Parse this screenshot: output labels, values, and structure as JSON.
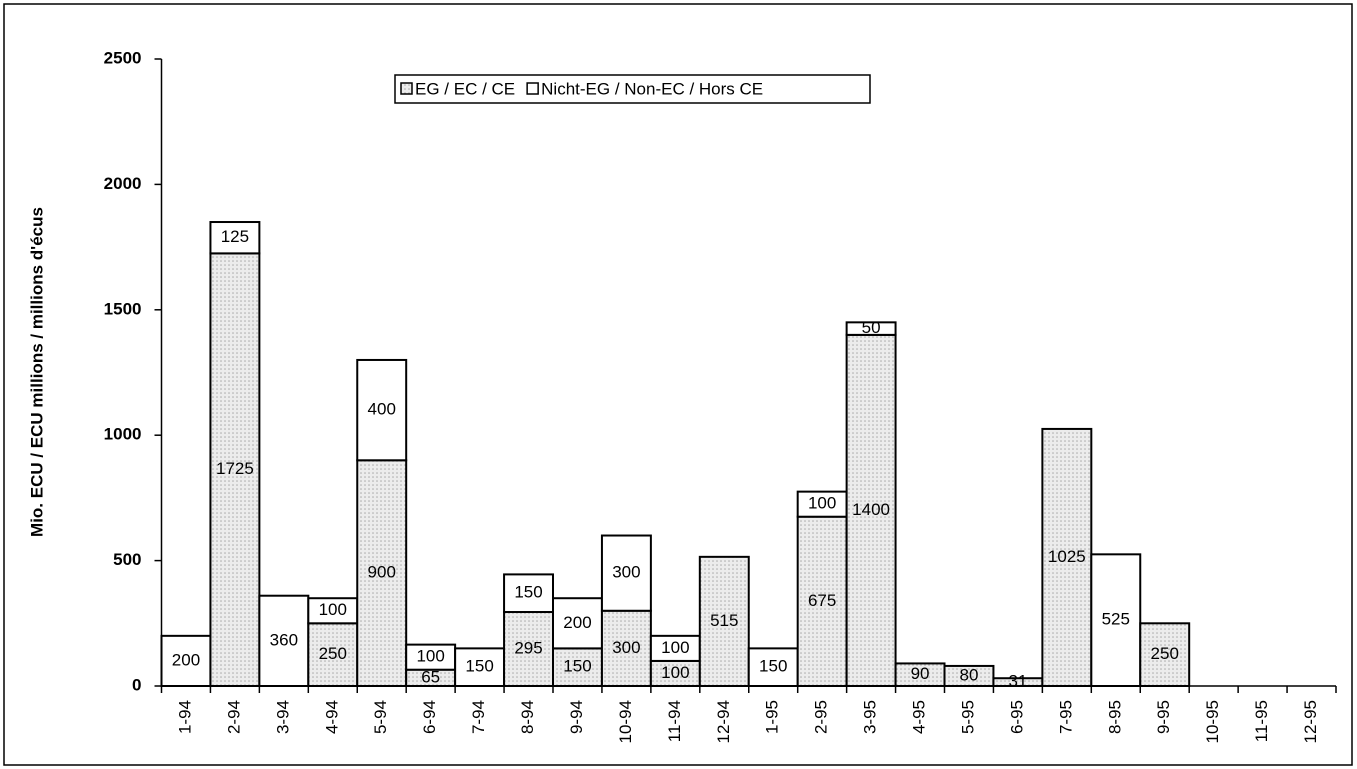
{
  "chart_data": {
    "type": "bar",
    "stacked": true,
    "y_label": "Mio. ECU / ECU millions / millions d'écus",
    "categories": [
      "1-94",
      "2-94",
      "3-94",
      "4-94",
      "5-94",
      "6-94",
      "7-94",
      "8-94",
      "9-94",
      "10-94",
      "11-94",
      "12-94",
      "1-95",
      "2-95",
      "3-95",
      "4-95",
      "5-95",
      "6-95",
      "7-95",
      "8-95",
      "9-95",
      "10-95",
      "11-95",
      "12-95"
    ],
    "series": [
      {
        "name": "EG / EC / CE",
        "color": "#e2e2e2",
        "values": [
          null,
          1725,
          null,
          250,
          900,
          65,
          null,
          295,
          150,
          300,
          100,
          515,
          null,
          675,
          1400,
          90,
          80,
          31,
          1025,
          null,
          250,
          null,
          null,
          null
        ]
      },
      {
        "name": "Nicht-EG / Non-EC / Hors CE",
        "color": "#ffffff",
        "values": [
          200,
          125,
          360,
          100,
          400,
          100,
          150,
          150,
          200,
          300,
          100,
          null,
          150,
          100,
          50,
          null,
          null,
          null,
          null,
          525,
          null,
          null,
          null,
          null
        ]
      }
    ],
    "ylim": [
      0,
      2500
    ],
    "yticks": [
      0,
      500,
      1000,
      1500,
      2000,
      2500
    ],
    "legend": "top"
  }
}
